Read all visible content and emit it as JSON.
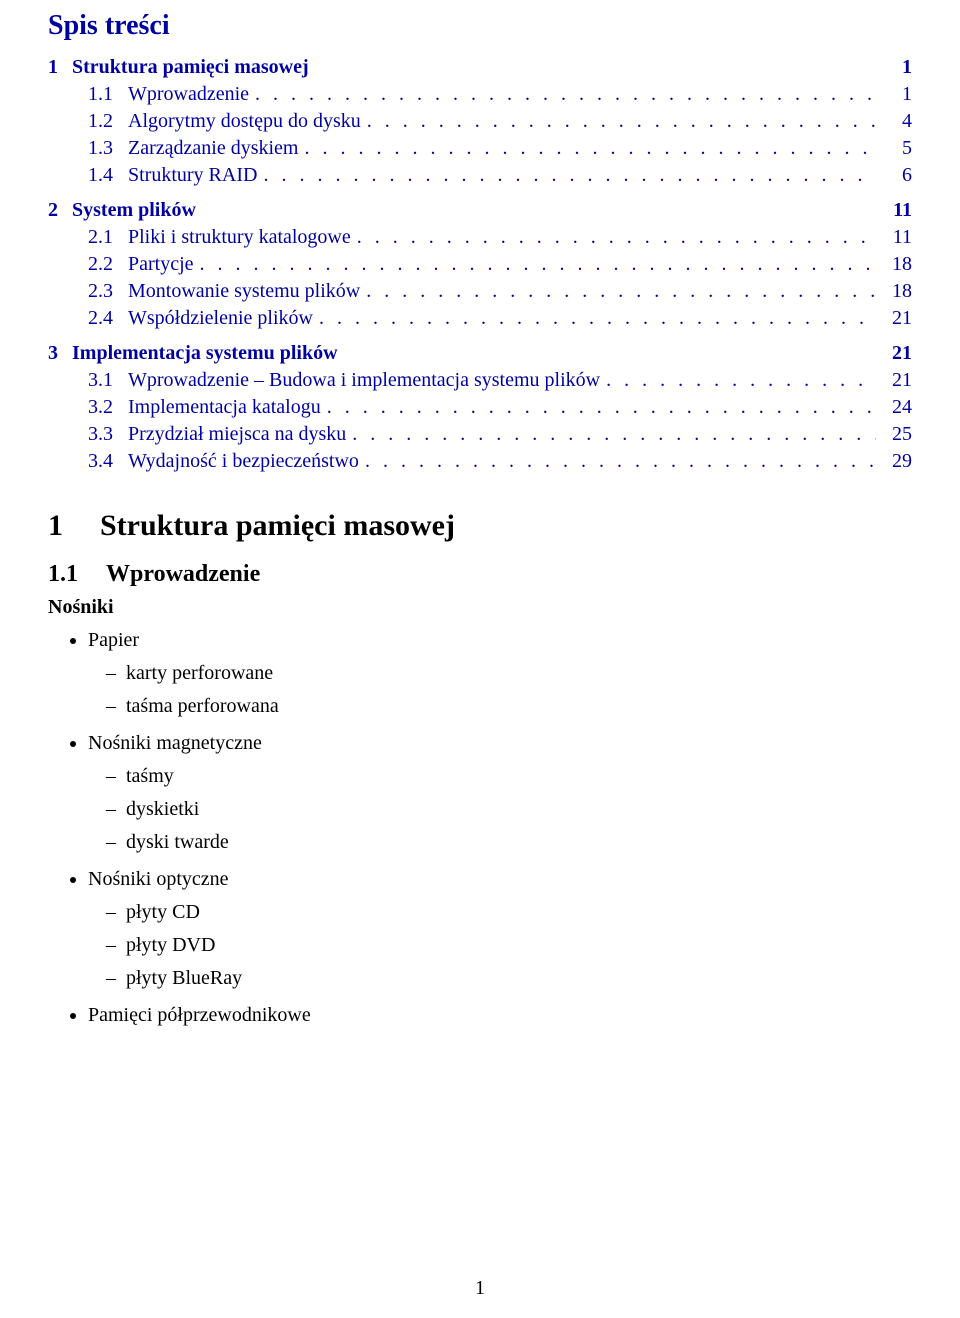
{
  "colors": {
    "link_blue": "#0000a0",
    "text_black": "#000000",
    "background": "#ffffff"
  },
  "typography": {
    "base_family": "Times New Roman",
    "toc_title_size_pt": 21,
    "section_size_pt": 15,
    "sub_size_pt": 15,
    "h1_size_pt": 22,
    "h2_size_pt": 18,
    "body_size_pt": 15
  },
  "toc": {
    "title": "Spis treści",
    "sections": [
      {
        "num": "1",
        "label": "Struktura pamięci masowej",
        "page": "1",
        "subs": [
          {
            "num": "1.1",
            "label": "Wprowadzenie",
            "page": "1"
          },
          {
            "num": "1.2",
            "label": "Algorytmy dostępu do dysku",
            "page": "4"
          },
          {
            "num": "1.3",
            "label": "Zarządzanie dyskiem",
            "page": "5"
          },
          {
            "num": "1.4",
            "label": "Struktury RAID",
            "page": "6"
          }
        ]
      },
      {
        "num": "2",
        "label": "System plików",
        "page": "11",
        "subs": [
          {
            "num": "2.1",
            "label": "Pliki i struktury katalogowe",
            "page": "11"
          },
          {
            "num": "2.2",
            "label": "Partycje",
            "page": "18"
          },
          {
            "num": "2.3",
            "label": "Montowanie systemu plików",
            "page": "18"
          },
          {
            "num": "2.4",
            "label": "Współdzielenie plików",
            "page": "21"
          }
        ]
      },
      {
        "num": "3",
        "label": "Implementacja systemu plików",
        "page": "21",
        "subs": [
          {
            "num": "3.1",
            "label": "Wprowadzenie – Budowa i implementacja systemu plików",
            "page": "21"
          },
          {
            "num": "3.2",
            "label": "Implementacja katalogu",
            "page": "24"
          },
          {
            "num": "3.3",
            "label": "Przydział miejsca na dysku",
            "page": "25"
          },
          {
            "num": "3.4",
            "label": "Wydajność i bezpieczeństwo",
            "page": "29"
          }
        ]
      }
    ]
  },
  "body": {
    "h1": {
      "num": "1",
      "label": "Struktura pamięci masowej"
    },
    "h2": {
      "num": "1.1",
      "label": "Wprowadzenie"
    },
    "subhead": "Nośniki",
    "bullets": [
      {
        "label": "Papier",
        "children": [
          "karty perforowane",
          "taśma perforowana"
        ]
      },
      {
        "label": "Nośniki magnetyczne",
        "children": [
          "taśmy",
          "dyskietki",
          "dyski twarde"
        ]
      },
      {
        "label": "Nośniki optyczne",
        "children": [
          "płyty CD",
          "płyty DVD",
          "płyty BlueRay"
        ]
      },
      {
        "label": "Pamięci półprzewodnikowe",
        "children": []
      }
    ]
  },
  "page_number": "1"
}
